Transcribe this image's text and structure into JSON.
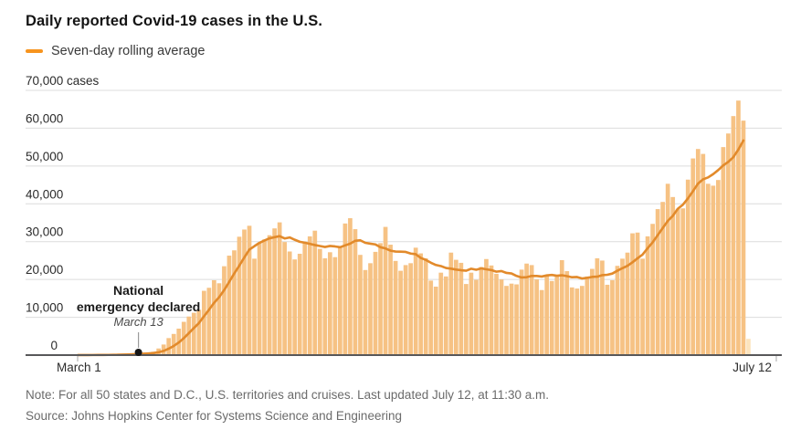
{
  "header": {
    "title": "Daily reported Covid-19 cases in the U.S.",
    "legend_label": "Seven-day rolling average"
  },
  "footer": {
    "note": "Note: For all 50 states and D.C., U.S. territories and cruises. Last updated July 12, at 11:30 a.m.",
    "source": "Source: Johns Hopkins Center for Systems Science and Engineering"
  },
  "colors": {
    "bar": "#F6C284",
    "bar_partial": "#FCE4BE",
    "line": "#E28A2B",
    "legend_dash": "#F7941E",
    "grid": "#DCDCDC",
    "axis": "#58585A",
    "tick": "#AAAAAA",
    "annotation_dot": "#161616",
    "annotation_leader": "#9A9A9A"
  },
  "chart_data": {
    "type": "bar",
    "title": "Daily reported Covid-19 cases in the U.S.",
    "xlabel": "",
    "ylabel": "cases",
    "ylim": [
      0,
      70000
    ],
    "ytick_step": 10000,
    "ytick_labels": [
      "0",
      "10,000",
      "20,000",
      "30,000",
      "40,000",
      "50,000",
      "60,000",
      "70,000 cases"
    ],
    "x_start_label": "March 1",
    "x_end_label": "July 12",
    "grid": "horizontal",
    "legend_position": "top-left",
    "series": [
      {
        "name": "Daily reported cases",
        "start_date": "March 1",
        "end_date": "July 12",
        "values": [
          24,
          20,
          31,
          53,
          55,
          110,
          120,
          120,
          200,
          290,
          320,
          400,
          520,
          700,
          730,
          890,
          1750,
          2800,
          4500,
          5600,
          7000,
          8800,
          10200,
          11200,
          12000,
          17000,
          17800,
          19800,
          19000,
          23500,
          26300,
          27700,
          31300,
          33200,
          34200,
          25500,
          29600,
          30600,
          31700,
          33500,
          35100,
          29900,
          27400,
          25300,
          26800,
          30000,
          31400,
          32900,
          28100,
          25600,
          27200,
          25900,
          28600,
          34800,
          36200,
          33300,
          26500,
          22500,
          24300,
          27300,
          29600,
          33900,
          29200,
          24900,
          22300,
          23800,
          24300,
          28400,
          26900,
          25600,
          19700,
          18100,
          21800,
          20800,
          27100,
          25200,
          24400,
          18800,
          21800,
          19900,
          23300,
          25400,
          23700,
          21500,
          20000,
          18300,
          18900,
          18700,
          22600,
          24200,
          23800,
          20000,
          17200,
          21000,
          19600,
          21100,
          25100,
          22200,
          17900,
          17600,
          18300,
          20800,
          22800,
          25600,
          25000,
          18600,
          19800,
          23600,
          25500,
          27100,
          32200,
          32400,
          25500,
          31400,
          34700,
          38600,
          40500,
          45300,
          41800,
          38700,
          38800,
          46400,
          52000,
          54500,
          53200,
          45300,
          44800,
          46300,
          55000,
          58600,
          63200,
          67300,
          62000,
          4300
        ]
      }
    ],
    "overlay_line": {
      "name": "Seven-day rolling average",
      "window": 7,
      "derived_from": "Daily reported cases",
      "excludes_partial_last_day": true
    },
    "partial_last_bar": true,
    "annotation": {
      "line1": "National",
      "line2": "emergency declared",
      "date_label": "March 13",
      "day_index": 12,
      "value_at_day": 520
    }
  }
}
